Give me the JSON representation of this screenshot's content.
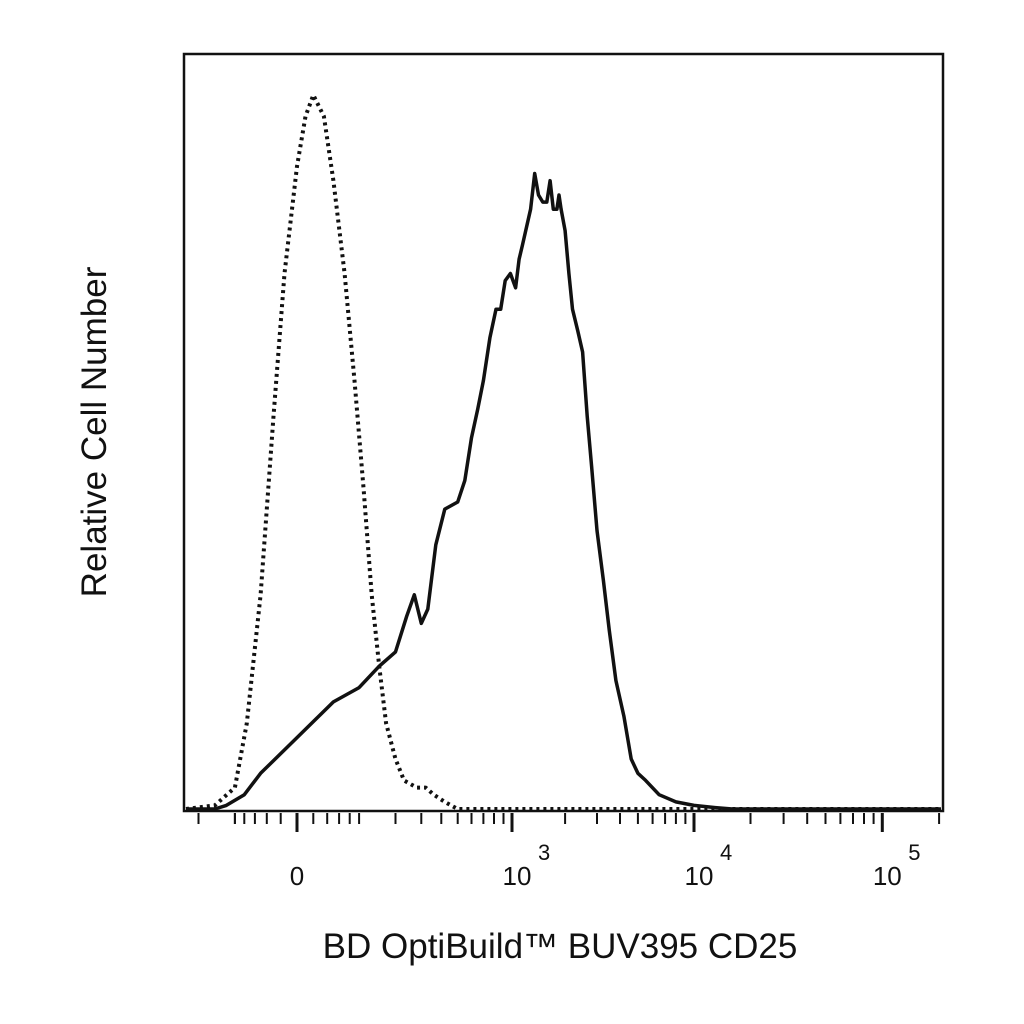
{
  "chart_data": {
    "type": "line",
    "title": "",
    "xlabel": "BD OptiBuild™ BUV395 CD25",
    "ylabel": "Relative Cell Number",
    "x_scale": "biexponential",
    "ylim": [
      0,
      100
    ],
    "grid": false,
    "legend": "none",
    "x_ticks": [
      {
        "base": "0",
        "exp": "",
        "value": 0
      },
      {
        "base": "10",
        "exp": "3",
        "value": 1000
      },
      {
        "base": "10",
        "exp": "4",
        "value": 10000
      },
      {
        "base": "10",
        "exp": "5",
        "value": 100000
      }
    ],
    "series": [
      {
        "style": "dotted",
        "color": "#111111",
        "points": [
          [
            -300,
            0
          ],
          [
            -150,
            0.5
          ],
          [
            -100,
            3
          ],
          [
            -75,
            12
          ],
          [
            -50,
            30
          ],
          [
            -30,
            55
          ],
          [
            -15,
            75
          ],
          [
            0,
            90
          ],
          [
            10,
            97
          ],
          [
            20,
            100
          ],
          [
            35,
            97
          ],
          [
            50,
            88
          ],
          [
            70,
            75
          ],
          [
            90,
            60
          ],
          [
            110,
            45
          ],
          [
            130,
            30
          ],
          [
            150,
            20
          ],
          [
            170,
            12
          ],
          [
            200,
            7
          ],
          [
            230,
            4
          ],
          [
            280,
            3
          ],
          [
            320,
            3
          ],
          [
            360,
            2
          ],
          [
            420,
            1
          ],
          [
            500,
            0
          ],
          [
            700,
            0
          ],
          [
            1000,
            0
          ],
          [
            10000,
            0
          ],
          [
            100000,
            0
          ],
          [
            300000,
            0
          ]
        ]
      },
      {
        "style": "solid",
        "color": "#111111",
        "points": [
          [
            -300,
            0
          ],
          [
            -150,
            0
          ],
          [
            -120,
            0.5
          ],
          [
            -80,
            2
          ],
          [
            -50,
            5
          ],
          [
            0,
            10
          ],
          [
            50,
            15
          ],
          [
            100,
            17
          ],
          [
            150,
            20
          ],
          [
            200,
            22
          ],
          [
            240,
            27
          ],
          [
            270,
            30
          ],
          [
            300,
            26
          ],
          [
            330,
            28
          ],
          [
            370,
            37
          ],
          [
            420,
            42
          ],
          [
            500,
            43
          ],
          [
            550,
            46
          ],
          [
            600,
            52
          ],
          [
            650,
            56
          ],
          [
            700,
            60
          ],
          [
            760,
            66
          ],
          [
            820,
            70
          ],
          [
            870,
            70
          ],
          [
            920,
            74
          ],
          [
            980,
            75
          ],
          [
            1050,
            73
          ],
          [
            1100,
            77
          ],
          [
            1150,
            79
          ],
          [
            1200,
            81
          ],
          [
            1280,
            84
          ],
          [
            1350,
            89
          ],
          [
            1420,
            86
          ],
          [
            1500,
            85
          ],
          [
            1580,
            85
          ],
          [
            1650,
            88
          ],
          [
            1720,
            84
          ],
          [
            1800,
            84
          ],
          [
            1850,
            86
          ],
          [
            1900,
            84
          ],
          [
            2000,
            81
          ],
          [
            2100,
            75
          ],
          [
            2200,
            70
          ],
          [
            2350,
            67
          ],
          [
            2500,
            64
          ],
          [
            2650,
            55
          ],
          [
            2800,
            48
          ],
          [
            3000,
            39
          ],
          [
            3250,
            32
          ],
          [
            3500,
            25
          ],
          [
            3800,
            18
          ],
          [
            4200,
            13
          ],
          [
            4600,
            7
          ],
          [
            5000,
            5
          ],
          [
            5500,
            4
          ],
          [
            6500,
            2
          ],
          [
            8000,
            1
          ],
          [
            10000,
            0.5
          ],
          [
            13000,
            0.2
          ],
          [
            16000,
            0
          ],
          [
            25000,
            0
          ],
          [
            100000,
            0
          ],
          [
            300000,
            0
          ]
        ]
      }
    ]
  }
}
